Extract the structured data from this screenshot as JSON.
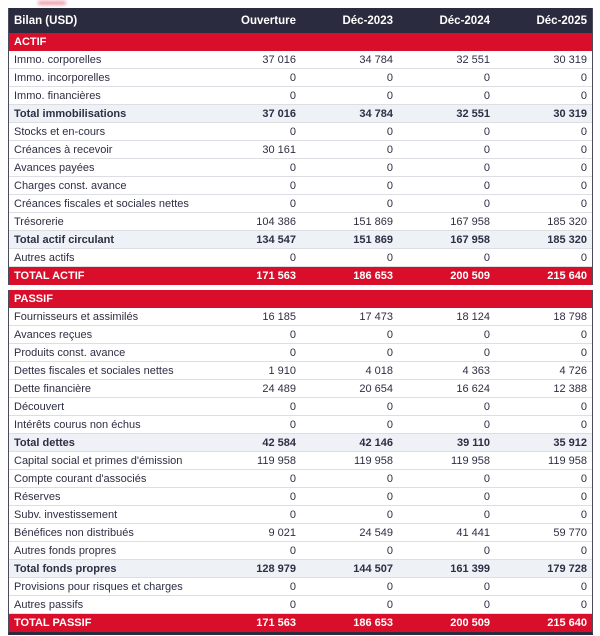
{
  "table": {
    "title": "Bilan (USD)",
    "columns": [
      "Ouverture",
      "Déc-2023",
      "Déc-2024",
      "Déc-2025"
    ],
    "colors": {
      "header_bg": "#2b2b3f",
      "accent_red": "#d80e2b",
      "subtotal_bg": "#eef1f6",
      "row_border": "#dcdee3",
      "text": "#2e2e44"
    },
    "sections": [
      {
        "name": "ACTIF",
        "rows": [
          {
            "label": "Immo. corporelles",
            "values": [
              "37 016",
              "34 784",
              "32 551",
              "30 319"
            ],
            "style": "normal"
          },
          {
            "label": "Immo. incorporelles",
            "values": [
              "0",
              "0",
              "0",
              "0"
            ],
            "style": "normal"
          },
          {
            "label": "Immo. financières",
            "values": [
              "0",
              "0",
              "0",
              "0"
            ],
            "style": "normal"
          },
          {
            "label": "Total immobilisations",
            "values": [
              "37 016",
              "34 784",
              "32 551",
              "30 319"
            ],
            "style": "subtotal"
          },
          {
            "label": "Stocks et en-cours",
            "values": [
              "0",
              "0",
              "0",
              "0"
            ],
            "style": "normal"
          },
          {
            "label": "Créances à recevoir",
            "values": [
              "30 161",
              "0",
              "0",
              "0"
            ],
            "style": "normal"
          },
          {
            "label": "Avances payées",
            "values": [
              "0",
              "0",
              "0",
              "0"
            ],
            "style": "normal"
          },
          {
            "label": "Charges const. avance",
            "values": [
              "0",
              "0",
              "0",
              "0"
            ],
            "style": "normal"
          },
          {
            "label": "Créances fiscales et sociales nettes",
            "values": [
              "0",
              "0",
              "0",
              "0"
            ],
            "style": "normal"
          },
          {
            "label": "Trésorerie",
            "values": [
              "104 386",
              "151 869",
              "167 958",
              "185 320"
            ],
            "style": "normal"
          },
          {
            "label": "Total actif circulant",
            "values": [
              "134 547",
              "151 869",
              "167 958",
              "185 320"
            ],
            "style": "subtotal"
          },
          {
            "label": "Autres actifs",
            "values": [
              "0",
              "0",
              "0",
              "0"
            ],
            "style": "normal"
          },
          {
            "label": "TOTAL ACTIF",
            "values": [
              "171 563",
              "186 653",
              "200 509",
              "215 640"
            ],
            "style": "grand"
          }
        ]
      },
      {
        "name": "PASSIF",
        "rows": [
          {
            "label": "Fournisseurs et assimilés",
            "values": [
              "16 185",
              "17 473",
              "18 124",
              "18 798"
            ],
            "style": "normal"
          },
          {
            "label": "Avances reçues",
            "values": [
              "0",
              "0",
              "0",
              "0"
            ],
            "style": "normal"
          },
          {
            "label": "Produits const. avance",
            "values": [
              "0",
              "0",
              "0",
              "0"
            ],
            "style": "normal"
          },
          {
            "label": "Dettes fiscales et sociales nettes",
            "values": [
              "1 910",
              "4 018",
              "4 363",
              "4 726"
            ],
            "style": "normal"
          },
          {
            "label": "Dette financière",
            "values": [
              "24 489",
              "20 654",
              "16 624",
              "12 388"
            ],
            "style": "normal"
          },
          {
            "label": "Découvert",
            "values": [
              "0",
              "0",
              "0",
              "0"
            ],
            "style": "normal"
          },
          {
            "label": "Intérêts courus non échus",
            "values": [
              "0",
              "0",
              "0",
              "0"
            ],
            "style": "normal"
          },
          {
            "label": "Total dettes",
            "values": [
              "42 584",
              "42 146",
              "39 110",
              "35 912"
            ],
            "style": "subtotal"
          },
          {
            "label": "Capital social et primes d'émission",
            "values": [
              "119 958",
              "119 958",
              "119 958",
              "119 958"
            ],
            "style": "normal"
          },
          {
            "label": "Compte courant d'associés",
            "values": [
              "0",
              "0",
              "0",
              "0"
            ],
            "style": "normal"
          },
          {
            "label": "Réserves",
            "values": [
              "0",
              "0",
              "0",
              "0"
            ],
            "style": "normal"
          },
          {
            "label": "Subv. investissement",
            "values": [
              "0",
              "0",
              "0",
              "0"
            ],
            "style": "normal"
          },
          {
            "label": "Bénéfices non distribués",
            "values": [
              "9 021",
              "24 549",
              "41 441",
              "59 770"
            ],
            "style": "normal"
          },
          {
            "label": "Autres fonds propres",
            "values": [
              "0",
              "0",
              "0",
              "0"
            ],
            "style": "normal"
          },
          {
            "label": "Total fonds propres",
            "values": [
              "128 979",
              "144 507",
              "161 399",
              "179 728"
            ],
            "style": "subtotal"
          },
          {
            "label": "Provisions pour risques et charges",
            "values": [
              "0",
              "0",
              "0",
              "0"
            ],
            "style": "normal"
          },
          {
            "label": "Autres passifs",
            "values": [
              "0",
              "0",
              "0",
              "0"
            ],
            "style": "normal"
          },
          {
            "label": "TOTAL PASSIF",
            "values": [
              "171 563",
              "186 653",
              "200 509",
              "215 640"
            ],
            "style": "grand"
          }
        ]
      }
    ]
  }
}
